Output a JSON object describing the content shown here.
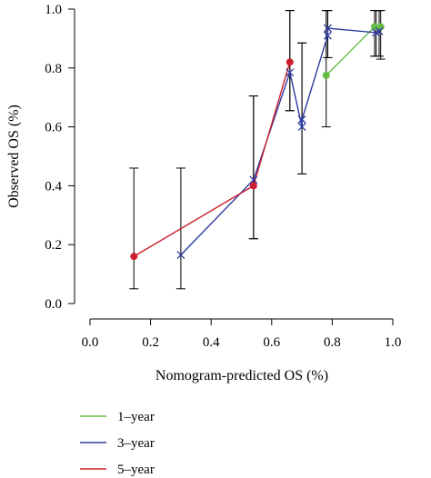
{
  "chart_data": {
    "type": "scatter",
    "title": "",
    "xlabel": "Nomogram-predicted OS (%)",
    "ylabel": "Observed OS (%)",
    "xlim": [
      0.0,
      1.0
    ],
    "ylim": [
      0.0,
      1.0
    ],
    "x_ticks": [
      "0.0",
      "0.2",
      "0.4",
      "0.6",
      "0.8",
      "1.0"
    ],
    "y_ticks": [
      "0.0",
      "0.2",
      "0.4",
      "0.6",
      "0.8",
      "1.0"
    ],
    "grid": false,
    "legend_position": "bottom-left",
    "series": [
      {
        "name": "1–year",
        "color": "#66bb44",
        "marker": "circle",
        "points": [
          {
            "x": 0.78,
            "y": 0.775,
            "ylow": 0.6,
            "yhigh": 0.995
          },
          {
            "x": 0.94,
            "y": 0.94,
            "ylow": 0.84,
            "yhigh": 0.995
          },
          {
            "x": 0.96,
            "y": 0.94,
            "ylow": 0.83,
            "yhigh": 0.995
          }
        ]
      },
      {
        "name": "3–year",
        "color": "#2d3a9e",
        "marker": "x",
        "points": [
          {
            "x": 0.3,
            "y": 0.165,
            "ylow": 0.05,
            "yhigh": 0.46
          },
          {
            "x": 0.54,
            "y": 0.42,
            "ylow": 0.22,
            "yhigh": 0.705
          },
          {
            "x": 0.66,
            "y": 0.785,
            "ylow": 0.655,
            "yhigh": 0.995
          },
          {
            "x": 0.7,
            "y": 0.6,
            "ylow": 0.44,
            "yhigh": 0.885
          },
          {
            "x": 0.7,
            "y": 0.625,
            "ylow": 0.44,
            "yhigh": 0.885
          },
          {
            "x": 0.785,
            "y": 0.91,
            "ylow": 0.835,
            "yhigh": 0.995
          },
          {
            "x": 0.785,
            "y": 0.935,
            "ylow": 0.835,
            "yhigh": 0.995
          },
          {
            "x": 0.945,
            "y": 0.92,
            "ylow": 0.84,
            "yhigh": 0.995
          },
          {
            "x": 0.955,
            "y": 0.925,
            "ylow": 0.84,
            "yhigh": 0.995
          }
        ]
      },
      {
        "name": "5–year",
        "color": "#cc1e2e",
        "marker": "circle",
        "points": [
          {
            "x": 0.145,
            "y": 0.16,
            "ylow": 0.05,
            "yhigh": 0.46
          },
          {
            "x": 0.54,
            "y": 0.4,
            "ylow": 0.22,
            "yhigh": 0.705
          },
          {
            "x": 0.66,
            "y": 0.82,
            "ylow": 0.655,
            "yhigh": 0.995
          }
        ]
      }
    ]
  }
}
